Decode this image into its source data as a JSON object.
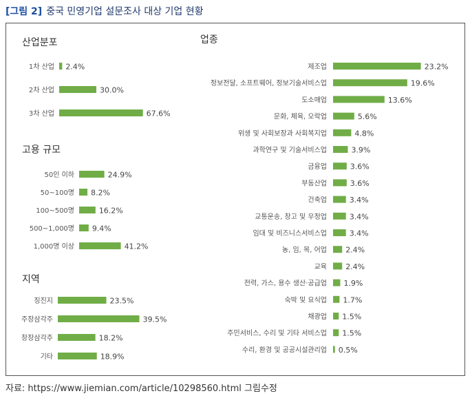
{
  "figure": {
    "tag": "[그림 2]",
    "title": "중국 민영기업 설문조사 대상 기업 현황",
    "source": "자료: https://www.jiemian.com/article/10298560.html 그림수정"
  },
  "colors": {
    "bar": "#70ad47",
    "frame": "#555555",
    "title": "#1a4ea0"
  },
  "chart_data": [
    {
      "type": "bar",
      "orientation": "horizontal",
      "title": "산업분포",
      "categories": [
        "1차 산업",
        "2차 산업",
        "3차 산업"
      ],
      "values": [
        2.4,
        30.0,
        67.6
      ],
      "value_labels": [
        "2.4%",
        "30.0%",
        "67.6%"
      ],
      "unit": "%"
    },
    {
      "type": "bar",
      "orientation": "horizontal",
      "title": "고용 규모",
      "categories": [
        "50인 이하",
        "50~100명",
        "100~500명",
        "500~1,000명",
        "1,000명 이상"
      ],
      "values": [
        24.9,
        8.2,
        16.2,
        9.4,
        41.2
      ],
      "value_labels": [
        "24.9%",
        "8.2%",
        "16.2%",
        "9.4%",
        "41.2%"
      ],
      "unit": "%"
    },
    {
      "type": "bar",
      "orientation": "horizontal",
      "title": "지역",
      "categories": [
        "징진지",
        "주장삼각주",
        "창장삼각주",
        "기타"
      ],
      "values": [
        23.5,
        39.5,
        18.2,
        18.9
      ],
      "value_labels": [
        "23.5%",
        "39.5%",
        "18.2%",
        "18.9%"
      ],
      "unit": "%"
    },
    {
      "type": "bar",
      "orientation": "horizontal",
      "title": "업종",
      "categories": [
        "제조업",
        "정보전달, 소프트웨어, 정보기술서비스업",
        "도소매업",
        "문화, 체육, 오락업",
        "위생 및 사회보장과 사회복지업",
        "과학연구 및 기술서비스업",
        "금융업",
        "부동산업",
        "건축업",
        "교통운송, 창고 및 우정업",
        "임대 및 비즈니스서비스업",
        "농, 임, 목, 어업",
        "교육",
        "전력, 가스, 용수 생산·공급업",
        "숙박 및 요식업",
        "채광업",
        "주민서비스, 수리 및 기타 서비스업",
        "수리, 환경 및 공공시설관리업"
      ],
      "values": [
        23.2,
        19.6,
        13.6,
        5.6,
        4.8,
        3.9,
        3.6,
        3.6,
        3.4,
        3.4,
        3.4,
        2.4,
        2.4,
        1.9,
        1.7,
        1.5,
        1.5,
        0.5
      ],
      "value_labels": [
        "23.2%",
        "19.6%",
        "13.6%",
        "5.6%",
        "4.8%",
        "3.9%",
        "3.6%",
        "3.6%",
        "3.4%",
        "3.4%",
        "3.4%",
        "2.4%",
        "2.4%",
        "1.9%",
        "1.7%",
        "1.5%",
        "1.5%",
        "0.5%"
      ],
      "unit": "%"
    }
  ]
}
